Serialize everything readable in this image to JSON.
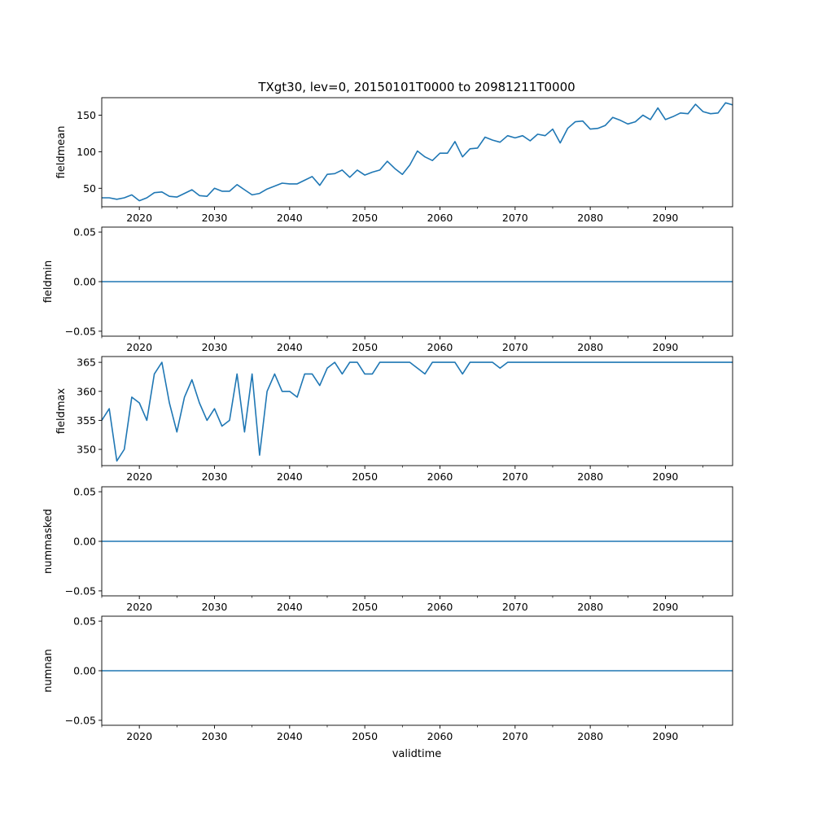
{
  "chart_data": {
    "type": "line",
    "title": "TXgt30, lev=0, 20150101T0000 to 20981211T0000",
    "xlabel": "validtime",
    "xlim": [
      2015.0,
      2098.94
    ],
    "x_start": 2015,
    "x_step": 1,
    "xticks": [
      2020,
      2030,
      2040,
      2050,
      2060,
      2070,
      2080,
      2090
    ],
    "xticklabels": [
      "2020",
      "2030",
      "2040",
      "2050",
      "2060",
      "2070",
      "2080",
      "2090"
    ],
    "x_minor_ticks": [
      2015,
      2025,
      2035,
      2045,
      2055,
      2065,
      2075,
      2085,
      2095
    ],
    "line_color": "#1f77b4",
    "grid": false,
    "panels": [
      {
        "ylabel": "fieldmean",
        "ylim": [
          24.7,
          174
        ],
        "yticks": [
          50,
          100,
          150
        ],
        "yticklabels": [
          "50",
          "100",
          "150"
        ],
        "values": [
          37,
          37,
          35,
          37,
          41,
          33,
          37,
          44,
          45,
          39,
          38,
          43,
          48,
          40,
          39,
          50,
          46,
          46,
          55,
          48,
          41,
          43,
          49,
          53,
          57,
          56,
          56,
          61,
          66,
          54,
          69,
          70,
          75,
          65,
          75,
          68,
          72,
          75,
          87,
          77,
          69,
          82,
          101,
          93,
          88,
          98,
          98,
          114,
          93,
          104,
          105,
          120,
          116,
          113,
          122,
          119,
          122,
          115,
          124,
          122,
          131,
          112,
          132,
          141,
          142,
          131,
          132,
          136,
          147,
          143,
          138,
          141,
          150,
          144,
          160,
          144,
          148,
          153,
          152,
          165,
          155,
          152,
          153,
          167,
          164
        ]
      },
      {
        "ylabel": "fieldmin",
        "ylim": [
          -0.055,
          0.055
        ],
        "yticks": [
          -0.05,
          0.0,
          0.05
        ],
        "yticklabels": [
          "−0.05",
          "0.00",
          "0.05"
        ],
        "values": [
          0,
          0
        ]
      },
      {
        "ylabel": "fieldmax",
        "ylim": [
          347.2,
          366
        ],
        "yticks": [
          350,
          355,
          360,
          365
        ],
        "yticklabels": [
          "350",
          "355",
          "360",
          "365"
        ],
        "values": [
          355,
          357,
          348,
          350,
          359,
          358,
          355,
          363,
          365,
          358,
          353,
          359,
          362,
          358,
          355,
          357,
          354,
          355,
          363,
          353,
          363,
          349,
          360,
          363,
          360,
          360,
          359,
          363,
          363,
          361,
          364,
          365,
          363,
          365,
          365,
          363,
          363,
          365,
          365,
          365,
          365,
          365,
          364,
          363,
          365,
          365,
          365,
          365,
          363,
          365,
          365,
          365,
          365,
          364,
          365,
          365,
          365,
          365,
          365,
          365,
          365,
          365,
          365,
          365,
          365,
          365,
          365,
          365,
          365,
          365,
          365,
          365,
          365,
          365,
          365,
          365,
          365,
          365,
          365,
          365,
          365,
          365,
          365,
          365,
          365
        ]
      },
      {
        "ylabel": "nummasked",
        "ylim": [
          -0.055,
          0.055
        ],
        "yticks": [
          -0.05,
          0.0,
          0.05
        ],
        "yticklabels": [
          "−0.05",
          "0.00",
          "0.05"
        ],
        "values": [
          0,
          0
        ]
      },
      {
        "ylabel": "numnan",
        "ylim": [
          -0.055,
          0.055
        ],
        "yticks": [
          -0.05,
          0.0,
          0.05
        ],
        "yticklabels": [
          "−0.05",
          "0.00",
          "0.05"
        ],
        "values": [
          0,
          0
        ]
      }
    ]
  }
}
